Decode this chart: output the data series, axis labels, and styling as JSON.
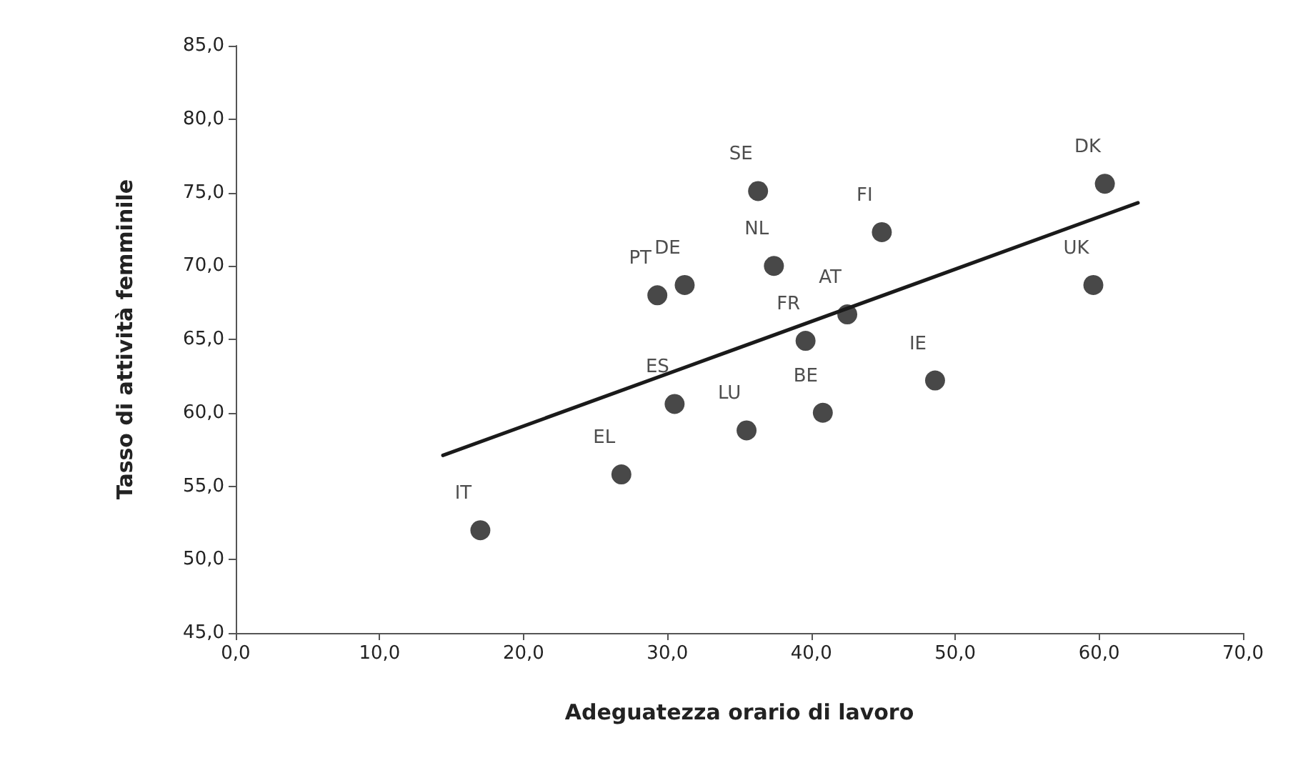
{
  "chart_data": {
    "type": "scatter",
    "xlabel": "Adeguatezza orario di lavoro",
    "ylabel": "Tasso di attività femminile",
    "xlim": [
      0,
      70
    ],
    "ylim": [
      45,
      85
    ],
    "xticks": [
      {
        "value": 0,
        "label": "0,0"
      },
      {
        "value": 10,
        "label": "10,0"
      },
      {
        "value": 20,
        "label": "20,0"
      },
      {
        "value": 30,
        "label": "30,0"
      },
      {
        "value": 40,
        "label": "40,0"
      },
      {
        "value": 50,
        "label": "50,0"
      },
      {
        "value": 60,
        "label": "60,0"
      },
      {
        "value": 70,
        "label": "70,0"
      }
    ],
    "yticks": [
      {
        "value": 45,
        "label": "45,0"
      },
      {
        "value": 50,
        "label": "50,0"
      },
      {
        "value": 55,
        "label": "55,0"
      },
      {
        "value": 60,
        "label": "60,0"
      },
      {
        "value": 65,
        "label": "65,0"
      },
      {
        "value": 70,
        "label": "70,0"
      },
      {
        "value": 75,
        "label": "75,0"
      },
      {
        "value": 80,
        "label": "80,0"
      },
      {
        "value": 85,
        "label": "85,0"
      }
    ],
    "grid": false,
    "marker": "circle",
    "series": [
      {
        "color": "#1a1a1a",
        "x": [
          17.0,
          26.8,
          30.5,
          29.3,
          31.2,
          36.3,
          37.4,
          35.5,
          39.6,
          42.5,
          44.9,
          40.8,
          48.6,
          59.6,
          60.4
        ],
        "values": [
          52.0,
          55.8,
          60.6,
          68.0,
          68.7,
          75.1,
          70.0,
          58.8,
          64.9,
          66.7,
          72.3,
          60.0,
          62.2,
          68.7,
          75.6
        ]
      },
      {
        "type": "line",
        "color": "#1a1a1a",
        "marker": "none",
        "line_style": "solid",
        "x": [
          14.4,
          62.7
        ],
        "values": [
          57.1,
          74.3
        ]
      }
    ],
    "annotations": [
      {
        "text": "IT",
        "x": 17.0,
        "y": 52.0
      },
      {
        "text": "EL",
        "x": 26.8,
        "y": 55.8
      },
      {
        "text": "ES",
        "x": 30.5,
        "y": 60.6
      },
      {
        "text": "PT",
        "x": 29.3,
        "y": 68.0
      },
      {
        "text": "DE",
        "x": 31.2,
        "y": 68.7
      },
      {
        "text": "SE",
        "x": 36.3,
        "y": 75.1
      },
      {
        "text": "NL",
        "x": 37.4,
        "y": 70.0
      },
      {
        "text": "LU",
        "x": 35.5,
        "y": 58.8
      },
      {
        "text": "FR",
        "x": 39.6,
        "y": 64.9
      },
      {
        "text": "AT",
        "x": 42.5,
        "y": 66.7
      },
      {
        "text": "FI",
        "x": 44.9,
        "y": 72.3
      },
      {
        "text": "BE",
        "x": 40.8,
        "y": 60.0
      },
      {
        "text": "IE",
        "x": 48.6,
        "y": 62.2
      },
      {
        "text": "UK",
        "x": 59.6,
        "y": 68.7
      },
      {
        "text": "DK",
        "x": 60.4,
        "y": 75.6
      }
    ]
  }
}
